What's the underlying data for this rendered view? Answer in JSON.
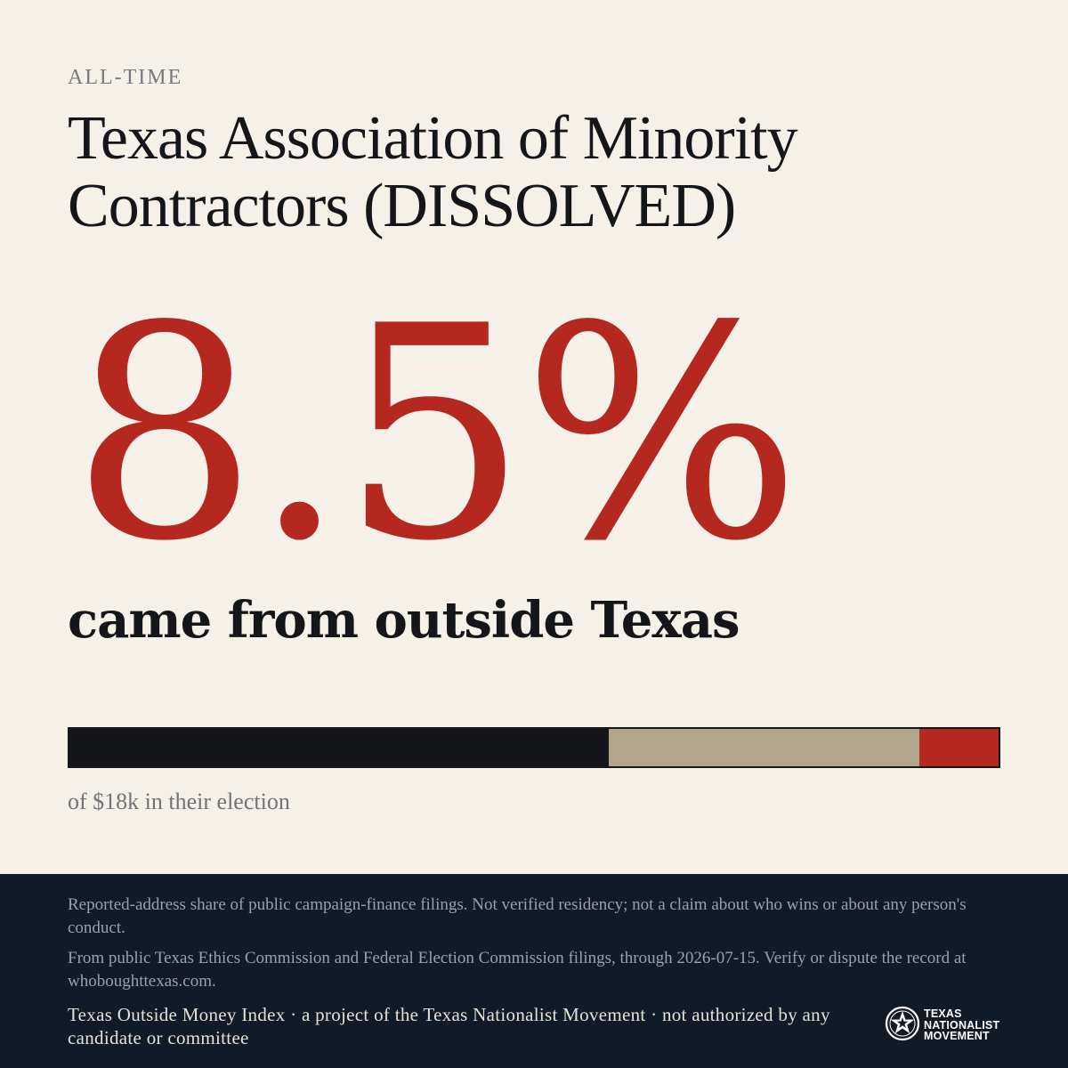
{
  "eyebrow": "ALL-TIME",
  "title": "Texas Association of Minority Contractors (DISSOLVED)",
  "stat": {
    "value": "8.5%",
    "label": "came from outside Texas"
  },
  "bar": {
    "segments": [
      {
        "key": "texas",
        "fraction": 0.58,
        "color": "#14161a"
      },
      {
        "key": "unknown",
        "fraction": 0.335,
        "color": "#b1a68b"
      },
      {
        "key": "outside",
        "fraction": 0.085,
        "color": "#b52820"
      }
    ],
    "caption": "of $18k in their election"
  },
  "footer": {
    "disclaimer_1": "Reported-address share of public campaign-finance filings. Not verified residency; not a claim about who wins or about any person's conduct.",
    "disclaimer_2": "From public Texas Ethics Commission and Federal Election Commission filings, through 2026-07-15. Verify or dispute the record at whoboughttexas.com.",
    "attribution": "Texas Outside Money Index · a project of the Texas Nationalist Movement · not authorized by any candidate or committee",
    "logo": {
      "icon": "star-seal-icon",
      "line1": "TEXAS",
      "line2": "NATIONALIST",
      "line3": "MOVEMENT"
    }
  }
}
